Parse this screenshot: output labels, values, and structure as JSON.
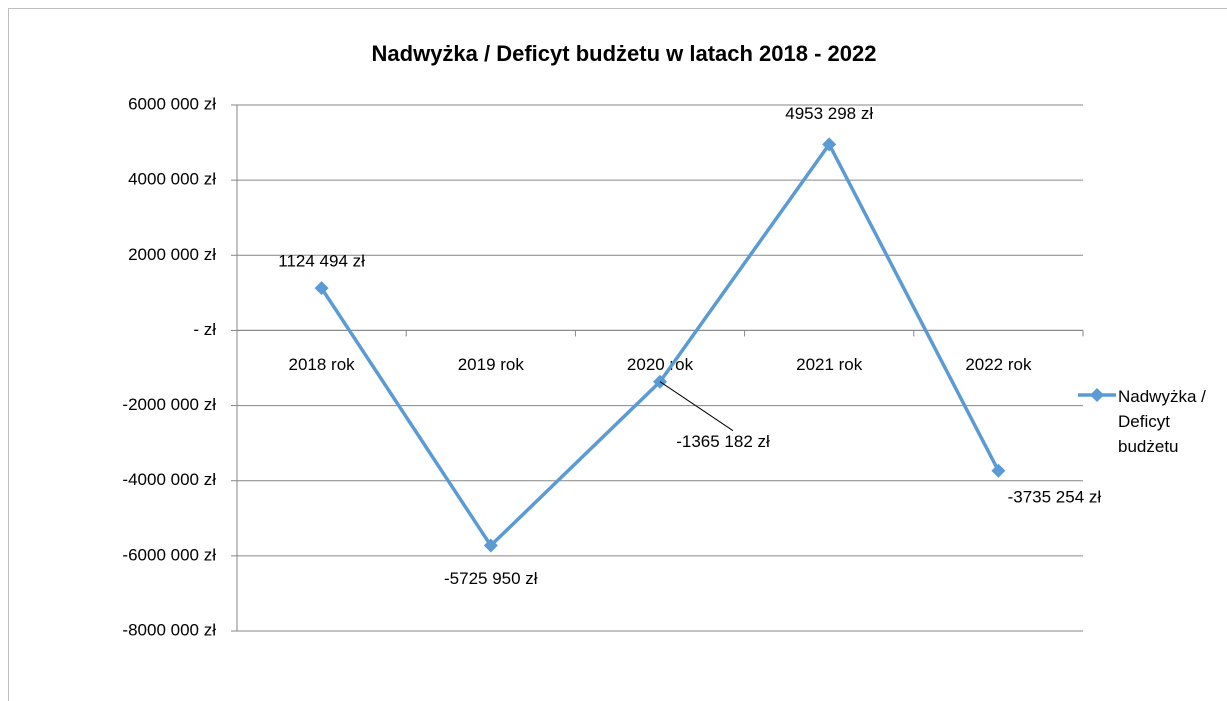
{
  "chart_data": {
    "type": "line",
    "title": "Nadwyżka / Deficyt budżetu w latach 2018 - 2022",
    "categories": [
      "2018 rok",
      "2019 rok",
      "2020 rok",
      "2021 rok",
      "2022 rok"
    ],
    "series": [
      {
        "name": "Nadwyżka / Deficyt budżetu",
        "color": "#5b9bd5",
        "values": [
          1124494,
          -5725950,
          -1365182,
          4953298,
          -3735254
        ],
        "value_labels": [
          "1124 494 zł",
          "-5725 950 zł",
          "-1365 182 zł",
          "4953 298 zł",
          "-3735 254 zł"
        ]
      }
    ],
    "ylim": [
      -8000000,
      6000000
    ],
    "yticks": [
      {
        "value": -8000000,
        "label": "-8000 000 zł"
      },
      {
        "value": -6000000,
        "label": "-6000 000 zł"
      },
      {
        "value": -4000000,
        "label": "-4000 000 zł"
      },
      {
        "value": -2000000,
        "label": "-2000 000 zł"
      },
      {
        "value": 0,
        "label": "-   zł"
      },
      {
        "value": 2000000,
        "label": "2000 000 zł"
      },
      {
        "value": 4000000,
        "label": "4000 000 zł"
      },
      {
        "value": 6000000,
        "label": "6000 000 zł"
      }
    ],
    "grid": true,
    "legend": "right"
  }
}
